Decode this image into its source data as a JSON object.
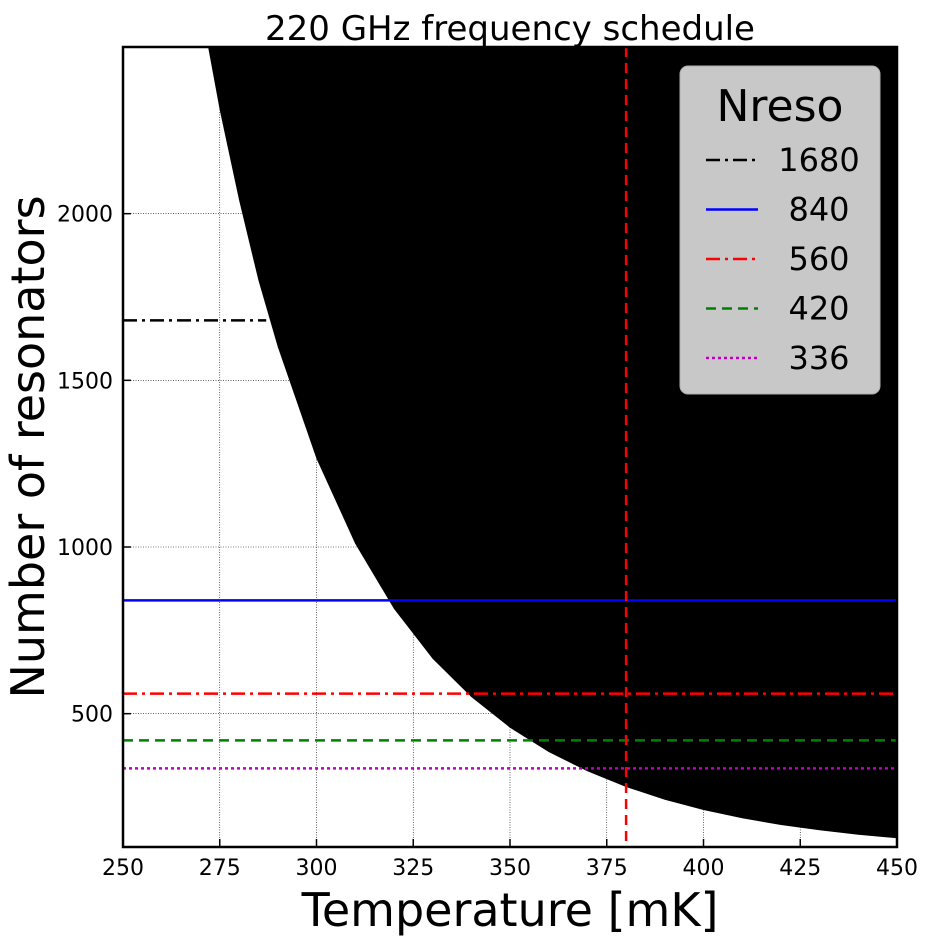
{
  "chart_data": {
    "type": "area",
    "title": "220 GHz frequency schedule",
    "xlabel": "Temperature [mK]",
    "ylabel": "Number of resonators",
    "xlim": [
      250,
      450
    ],
    "ylim": [
      100,
      2500
    ],
    "xticks": [
      250,
      275,
      300,
      325,
      350,
      375,
      400,
      425,
      450
    ],
    "yticks": [
      500,
      1000,
      1500,
      2000
    ],
    "grid": true,
    "boundary": {
      "description_color_allowed": "#ffffff",
      "description_color_excluded": "#000000",
      "x": [
        272,
        275,
        280,
        285,
        290,
        300,
        310,
        320,
        330,
        340,
        350,
        360,
        370,
        380,
        390,
        400,
        410,
        420,
        430,
        440,
        450
      ],
      "y": [
        2500,
        2310,
        2040,
        1800,
        1600,
        1265,
        1010,
        815,
        665,
        550,
        458,
        385,
        327,
        280,
        242,
        211,
        186,
        166,
        150,
        137,
        126
      ]
    },
    "legend": {
      "title": "Nreso",
      "placement": "top-right"
    },
    "series": [
      {
        "name": "1680",
        "value": 1680,
        "color": "#000000",
        "style": "dashdot"
      },
      {
        "name": "840",
        "value": 840,
        "color": "#0000ff",
        "style": "solid"
      },
      {
        "name": "560",
        "value": 560,
        "color": "#ff0000",
        "style": "dashdot"
      },
      {
        "name": "420",
        "value": 420,
        "color": "#008000",
        "style": "dashed"
      },
      {
        "name": "336",
        "value": 336,
        "color": "#bf00bf",
        "style": "dotted"
      }
    ],
    "vline": {
      "x": 380,
      "color": "#ff0000",
      "style": "dashed"
    }
  }
}
